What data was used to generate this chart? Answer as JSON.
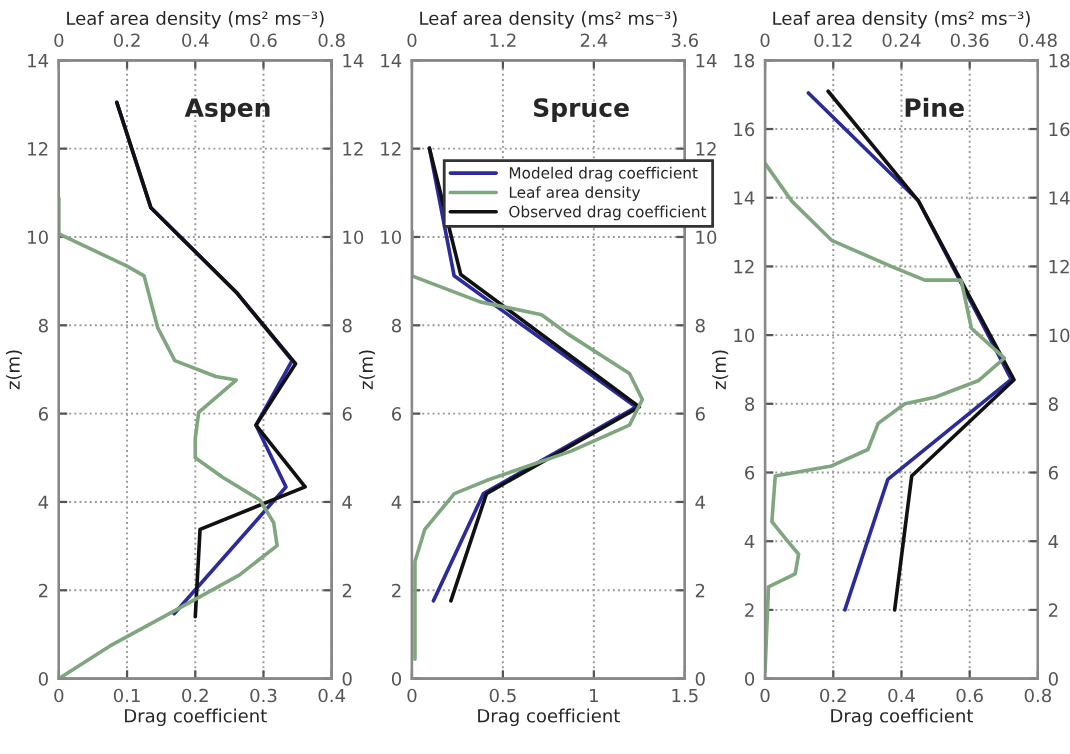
{
  "chart_data": [
    {
      "type": "line",
      "title": "Aspen",
      "xlabel": "Drag coefficient",
      "x2label": "Leaf area density (ms² ms⁻³)",
      "ylabel": "z(m)",
      "xlim": [
        0,
        0.4
      ],
      "xticks": [
        0,
        0.1,
        0.2,
        0.3,
        0.4
      ],
      "x2lim": [
        0,
        0.8
      ],
      "x2ticks": [
        0,
        0.2,
        0.4,
        0.6,
        0.8
      ],
      "ylim": [
        0,
        14
      ],
      "yticks": [
        0,
        2,
        4,
        6,
        8,
        10,
        12,
        14
      ],
      "y2lim": [
        0,
        14
      ],
      "y2ticks": [
        0,
        2,
        4,
        6,
        8,
        10,
        12,
        14
      ],
      "grid": true,
      "legend": false,
      "series": [
        {
          "color": "#2b2b9c",
          "x": [
            0.085,
            0.135,
            0.26,
            0.342,
            0.289,
            0.333,
            0.169
          ],
          "values": [
            13.04,
            10.66,
            8.75,
            7.2,
            5.74,
            4.34,
            1.47
          ]
        },
        {
          "color": "#7fa67f",
          "axis": "x2",
          "x": [
            0,
            0,
            0.2,
            0.25,
            0.29,
            0.34,
            0.46,
            0.52,
            0.41,
            0.4,
            0.4,
            0.48,
            0.59,
            0.63,
            0.64,
            0.53,
            0.34,
            0.15,
            0
          ],
          "values": [
            10.88,
            10.07,
            9.34,
            9.12,
            7.94,
            7.2,
            6.84,
            6.76,
            6.03,
            5.44,
            5.0,
            4.56,
            4.04,
            3.53,
            3.01,
            2.35,
            1.54,
            0.74,
            0
          ]
        },
        {
          "color": "#111111",
          "x": [
            0.085,
            0.135,
            0.26,
            0.347,
            0.289,
            0.361,
            0.207,
            0.2
          ],
          "values": [
            13.05,
            10.66,
            8.75,
            7.13,
            5.74,
            4.34,
            3.38,
            1.4
          ]
        }
      ]
    },
    {
      "type": "line",
      "title": "Spruce",
      "xlabel": "Drag coefficient",
      "x2label": "Leaf area density (ms² ms⁻³)",
      "ylabel": "z(m)",
      "xlim": [
        0,
        1.5
      ],
      "xticks": [
        0,
        0.5,
        1,
        1.5
      ],
      "x2lim": [
        0,
        3.6
      ],
      "x2ticks": [
        0,
        1.2,
        2.4,
        3.6
      ],
      "ylim": [
        0,
        14
      ],
      "yticks": [
        0,
        2,
        4,
        6,
        8,
        10,
        12,
        14
      ],
      "y2lim": [
        0,
        14
      ],
      "y2ticks": [
        0,
        2,
        4,
        6,
        8,
        10,
        12,
        14
      ],
      "grid": true,
      "legend": "top right",
      "series": [
        {
          "name": "Modeled drag coefficient",
          "color": "#2b2b9c",
          "x": [
            0.096,
            0.232,
            1.232,
            0.393,
            0.118
          ],
          "values": [
            12.01,
            9.12,
            6.15,
            4.19,
            1.76
          ]
        },
        {
          "name": "Leaf area density",
          "color": "#7fa67f",
          "axis": "x2",
          "x": [
            0,
            0,
            0.9,
            1.71,
            2.06,
            2.87,
            3.04,
            2.87,
            2.1,
            0.99,
            0.56,
            0.17,
            0.04,
            0.04
          ],
          "values": [
            10.13,
            9.12,
            8.53,
            8.24,
            7.8,
            6.91,
            6.32,
            5.74,
            5.15,
            4.49,
            4.19,
            3.38,
            2.65,
            0.44
          ]
        },
        {
          "name": "Observed drag coefficient",
          "color": "#111111",
          "x": [
            0.096,
            0.268,
            1.25,
            0.41,
            0.214
          ],
          "values": [
            12.01,
            9.15,
            6.15,
            4.19,
            1.76
          ]
        }
      ]
    },
    {
      "type": "line",
      "title": "Pine",
      "xlabel": "Drag coefficient",
      "x2label": "Leaf area density (ms² ms⁻³)",
      "ylabel": "z(m)",
      "xlim": [
        0,
        0.8
      ],
      "xticks": [
        0,
        0.2,
        0.4,
        0.6,
        0.8
      ],
      "x2lim": [
        0,
        0.48
      ],
      "x2ticks": [
        0,
        0.12,
        0.24,
        0.36,
        0.48
      ],
      "ylim": [
        0,
        18
      ],
      "yticks": [
        0,
        2,
        4,
        6,
        8,
        10,
        12,
        14,
        16,
        18
      ],
      "y2lim": [
        0,
        18
      ],
      "y2ticks": [
        0,
        2,
        4,
        6,
        8,
        10,
        12,
        14,
        16,
        18
      ],
      "grid": true,
      "legend": false,
      "series": [
        {
          "color": "#2b2b9c",
          "x": [
            0.127,
            0.449,
            0.722,
            0.36,
            0.234
          ],
          "values": [
            17.05,
            13.92,
            8.71,
            5.8,
            2.0
          ]
        },
        {
          "color": "#7fa67f",
          "axis": "x2",
          "x": [
            0,
            0.047,
            0.117,
            0.222,
            0.281,
            0.345,
            0.363,
            0.421,
            0.375,
            0.299,
            0.246,
            0.199,
            0.181,
            0.117,
            0.018,
            0.012,
            0.035,
            0.059,
            0.053,
            0.006,
            0
          ],
          "values": [
            15.0,
            13.9,
            12.76,
            12.0,
            11.6,
            11.6,
            10.2,
            9.33,
            8.67,
            8.19,
            8.0,
            7.43,
            6.67,
            6.19,
            5.9,
            4.57,
            4.1,
            3.62,
            3.05,
            2.67,
            0.2
          ]
        },
        {
          "color": "#111111",
          "x": [
            0.185,
            0.45,
            0.73,
            0.43,
            0.38
          ],
          "values": [
            17.1,
            13.9,
            8.7,
            5.9,
            2.0
          ]
        }
      ]
    }
  ]
}
